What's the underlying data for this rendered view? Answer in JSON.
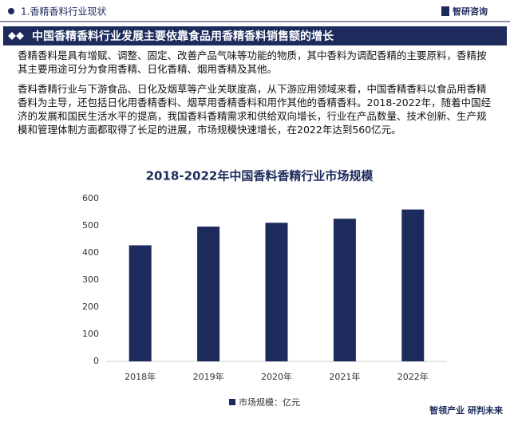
{
  "header": {
    "section": "1.香精香料行业现状",
    "logo": "智研咨询"
  },
  "banner": "中国香精香料行业发展主要依靠食品用香精香料销售额的增长",
  "paragraphs": [
    "香精香料是具有增赋、调整、固定、改善产品气味等功能的物质，其中香料为调配香精的主要原料，香精按其主要用途可分为食用香精、日化香精、烟用香精及其他。",
    "香料香精行业与下游食品、日化及烟草等产业关联度高，从下游应用领域来看，中国香精香料以食品用香精香料为主导，还包括日化用香精香料、烟草用香精香料和用作其他的香精香料。2018-2022年，随着中国经济的发展和国民生活水平的提高，我国香料香精需求和供给双向增长，行业在产品数量、技术创新、生产规模和管理体制方面都取得了长足的进展，市场规模快速增长，在2022年达到560亿元。"
  ],
  "chart_data": {
    "type": "bar",
    "title": "2018-2022年中国香料香精行业市场规模",
    "categories": [
      "2018年",
      "2019年",
      "2020年",
      "2021年",
      "2022年"
    ],
    "series": [
      {
        "name": "市场规模：亿元",
        "color": "#1c2a5c",
        "values": [
          428,
          497,
          511,
          526,
          560
        ]
      }
    ],
    "ylim": [
      0,
      600
    ],
    "yticks": [
      0,
      100,
      200,
      300,
      400,
      500,
      600
    ],
    "grid": false
  },
  "footer": "智领产业 研判未来"
}
